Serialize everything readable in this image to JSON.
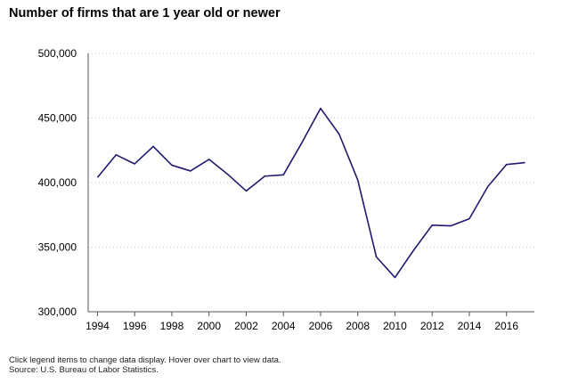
{
  "chart_data": {
    "type": "line",
    "title": "Number of firms that are 1 year old or newer",
    "xlabel": "",
    "ylabel": "",
    "x": [
      1994,
      1995,
      1996,
      1997,
      1998,
      1999,
      2000,
      2001,
      2002,
      2003,
      2004,
      2005,
      2006,
      2007,
      2008,
      2009,
      2010,
      2011,
      2012,
      2013,
      2014,
      2015,
      2016,
      2017
    ],
    "series": [
      {
        "values": [
          404000,
          421500,
          414500,
          428000,
          413500,
          409000,
          418000,
          406500,
          393500,
          405000,
          406000,
          431000,
          457500,
          437500,
          402000,
          342500,
          326500,
          347500,
          367000,
          366500,
          372000,
          397000,
          414000,
          415500
        ],
        "color": "#1f1a6e"
      }
    ],
    "xlim": [
      1993.5,
      2017.5
    ],
    "ylim": [
      300000,
      500000
    ],
    "x_ticks": [
      "1994",
      "1996",
      "1998",
      "2000",
      "2002",
      "2004",
      "2006",
      "2008",
      "2010",
      "2012",
      "2014",
      "2016"
    ],
    "y_ticks": [
      "300,000",
      "350,000",
      "400,000",
      "450,000",
      "500,000"
    ],
    "y_tick_values": [
      300000,
      350000,
      400000,
      450000,
      500000
    ],
    "grid": "horizontal dotted",
    "legend": "none"
  },
  "notes": {
    "line1": "Click legend items to change data display. Hover over chart to view data.",
    "line2": "Source: U.S. Bureau of Labor Statistics."
  }
}
